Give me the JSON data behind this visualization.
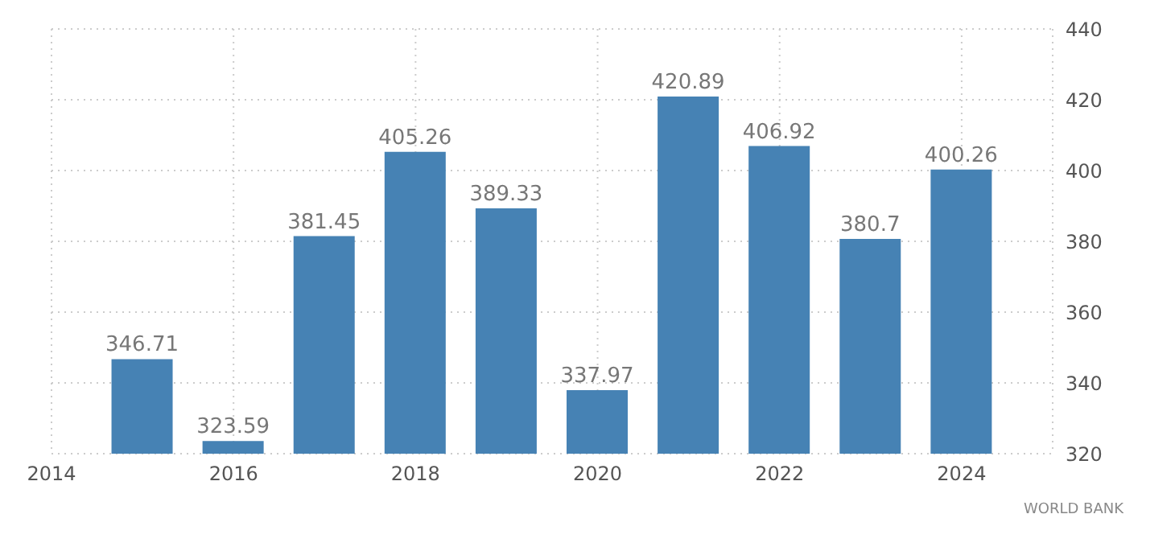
{
  "chart_data": {
    "type": "bar",
    "x": [
      2015,
      2016,
      2017,
      2018,
      2019,
      2020,
      2021,
      2022,
      2023,
      2024
    ],
    "values": [
      346.71,
      323.59,
      381.45,
      405.26,
      389.33,
      337.97,
      420.89,
      406.92,
      380.7,
      400.26
    ],
    "color": "#4682b4",
    "xlim": [
      2014,
      2025
    ],
    "xticks": [
      2014,
      2016,
      2018,
      2020,
      2022,
      2024
    ],
    "ylim": [
      320,
      440
    ],
    "yticks": [
      320,
      340,
      360,
      380,
      400,
      420,
      440
    ],
    "grid": true,
    "data_labels": true,
    "annotations": [
      "WORLD BANK"
    ]
  }
}
